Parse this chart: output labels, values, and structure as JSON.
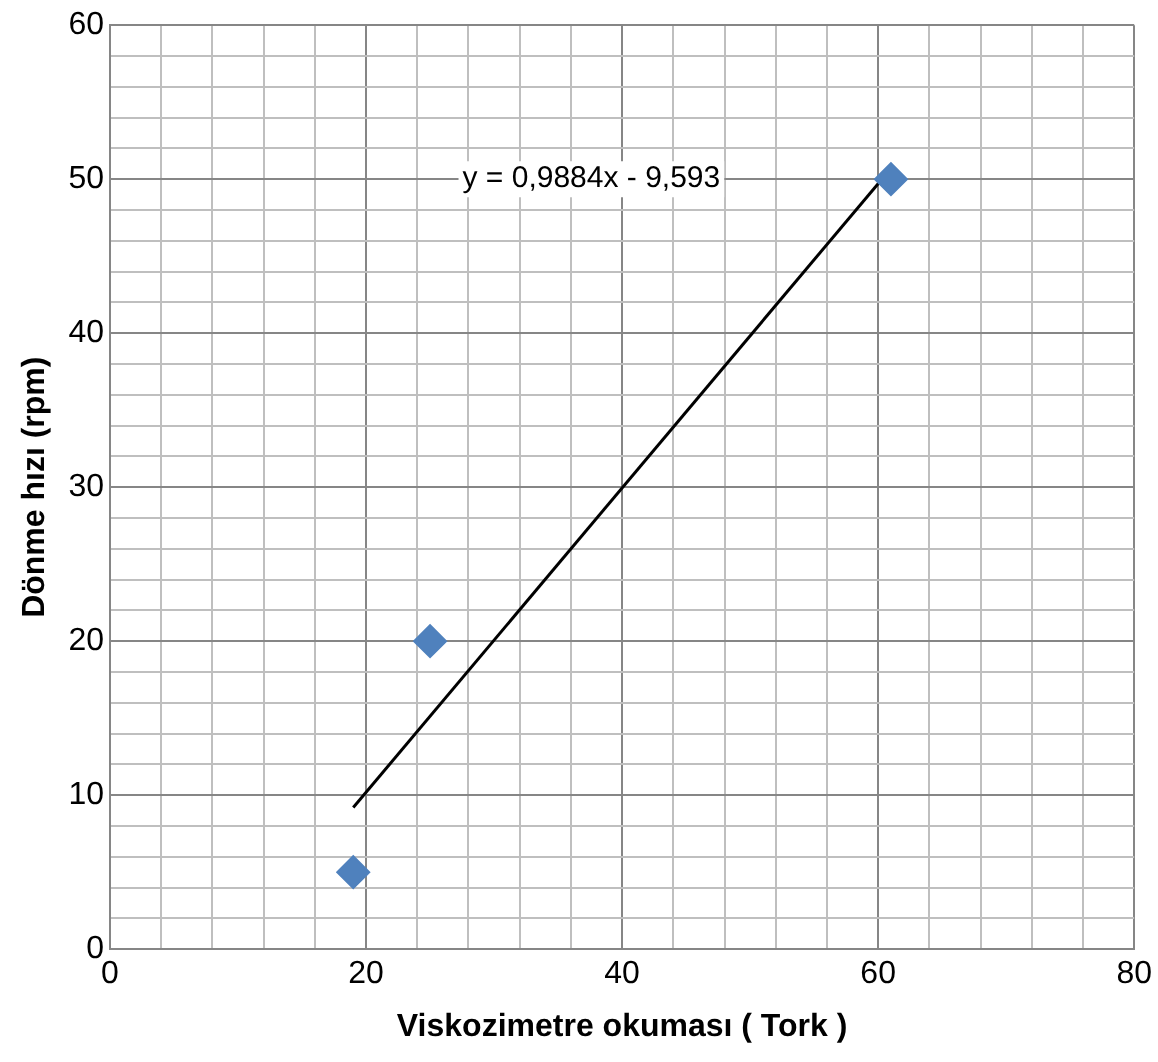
{
  "chart_data": {
    "type": "scatter",
    "xlabel": "Viskozimetre okuması ( Tork )",
    "ylabel": "Dönme hızı (rpm)",
    "xlim": [
      0,
      80
    ],
    "ylim": [
      0,
      60
    ],
    "xticks": [
      0,
      {
        "value": 4,
        "label": null
      },
      {
        "value": 8,
        "label": null
      },
      {
        "value": 12,
        "label": null
      },
      {
        "value": 16,
        "label": null
      },
      20,
      {
        "value": 24,
        "label": null
      },
      {
        "value": 28,
        "label": null
      },
      {
        "value": 32,
        "label": null
      },
      {
        "value": 36,
        "label": null
      },
      40,
      {
        "value": 44,
        "label": null
      },
      {
        "value": 48,
        "label": null
      },
      {
        "value": 52,
        "label": null
      },
      {
        "value": 56,
        "label": null
      },
      60,
      {
        "value": 64,
        "label": null
      },
      {
        "value": 68,
        "label": null
      },
      {
        "value": 72,
        "label": null
      },
      {
        "value": 76,
        "label": null
      },
      80
    ],
    "yticks": [
      0,
      {
        "value": 2,
        "label": null
      },
      {
        "value": 4,
        "label": null
      },
      {
        "value": 6,
        "label": null
      },
      {
        "value": 8,
        "label": null
      },
      10,
      {
        "value": 12,
        "label": null
      },
      {
        "value": 14,
        "label": null
      },
      {
        "value": 16,
        "label": null
      },
      {
        "value": 18,
        "label": null
      },
      20,
      {
        "value": 22,
        "label": null
      },
      {
        "value": 24,
        "label": null
      },
      {
        "value": 26,
        "label": null
      },
      {
        "value": 28,
        "label": null
      },
      30,
      {
        "value": 32,
        "label": null
      },
      {
        "value": 34,
        "label": null
      },
      {
        "value": 36,
        "label": null
      },
      {
        "value": 38,
        "label": null
      },
      40,
      {
        "value": 42,
        "label": null
      },
      {
        "value": 44,
        "label": null
      },
      {
        "value": 46,
        "label": null
      },
      {
        "value": 48,
        "label": null
      },
      50,
      {
        "value": 52,
        "label": null
      },
      {
        "value": 54,
        "label": null
      },
      {
        "value": 56,
        "label": null
      },
      {
        "value": 58,
        "label": null
      },
      60
    ],
    "grid": true,
    "legend": false,
    "marker": "diamond",
    "series": [
      {
        "color": "#4f81bd",
        "x": [
          19,
          25,
          61
        ],
        "values": [
          5,
          20,
          50
        ]
      },
      {
        "type": "line",
        "color": "#000000",
        "marker": "none",
        "x": [
          19,
          61
        ],
        "values": [
          9.2,
          50.7
        ]
      }
    ],
    "annotations": [
      "y = 0,9884x - 9,593"
    ]
  }
}
